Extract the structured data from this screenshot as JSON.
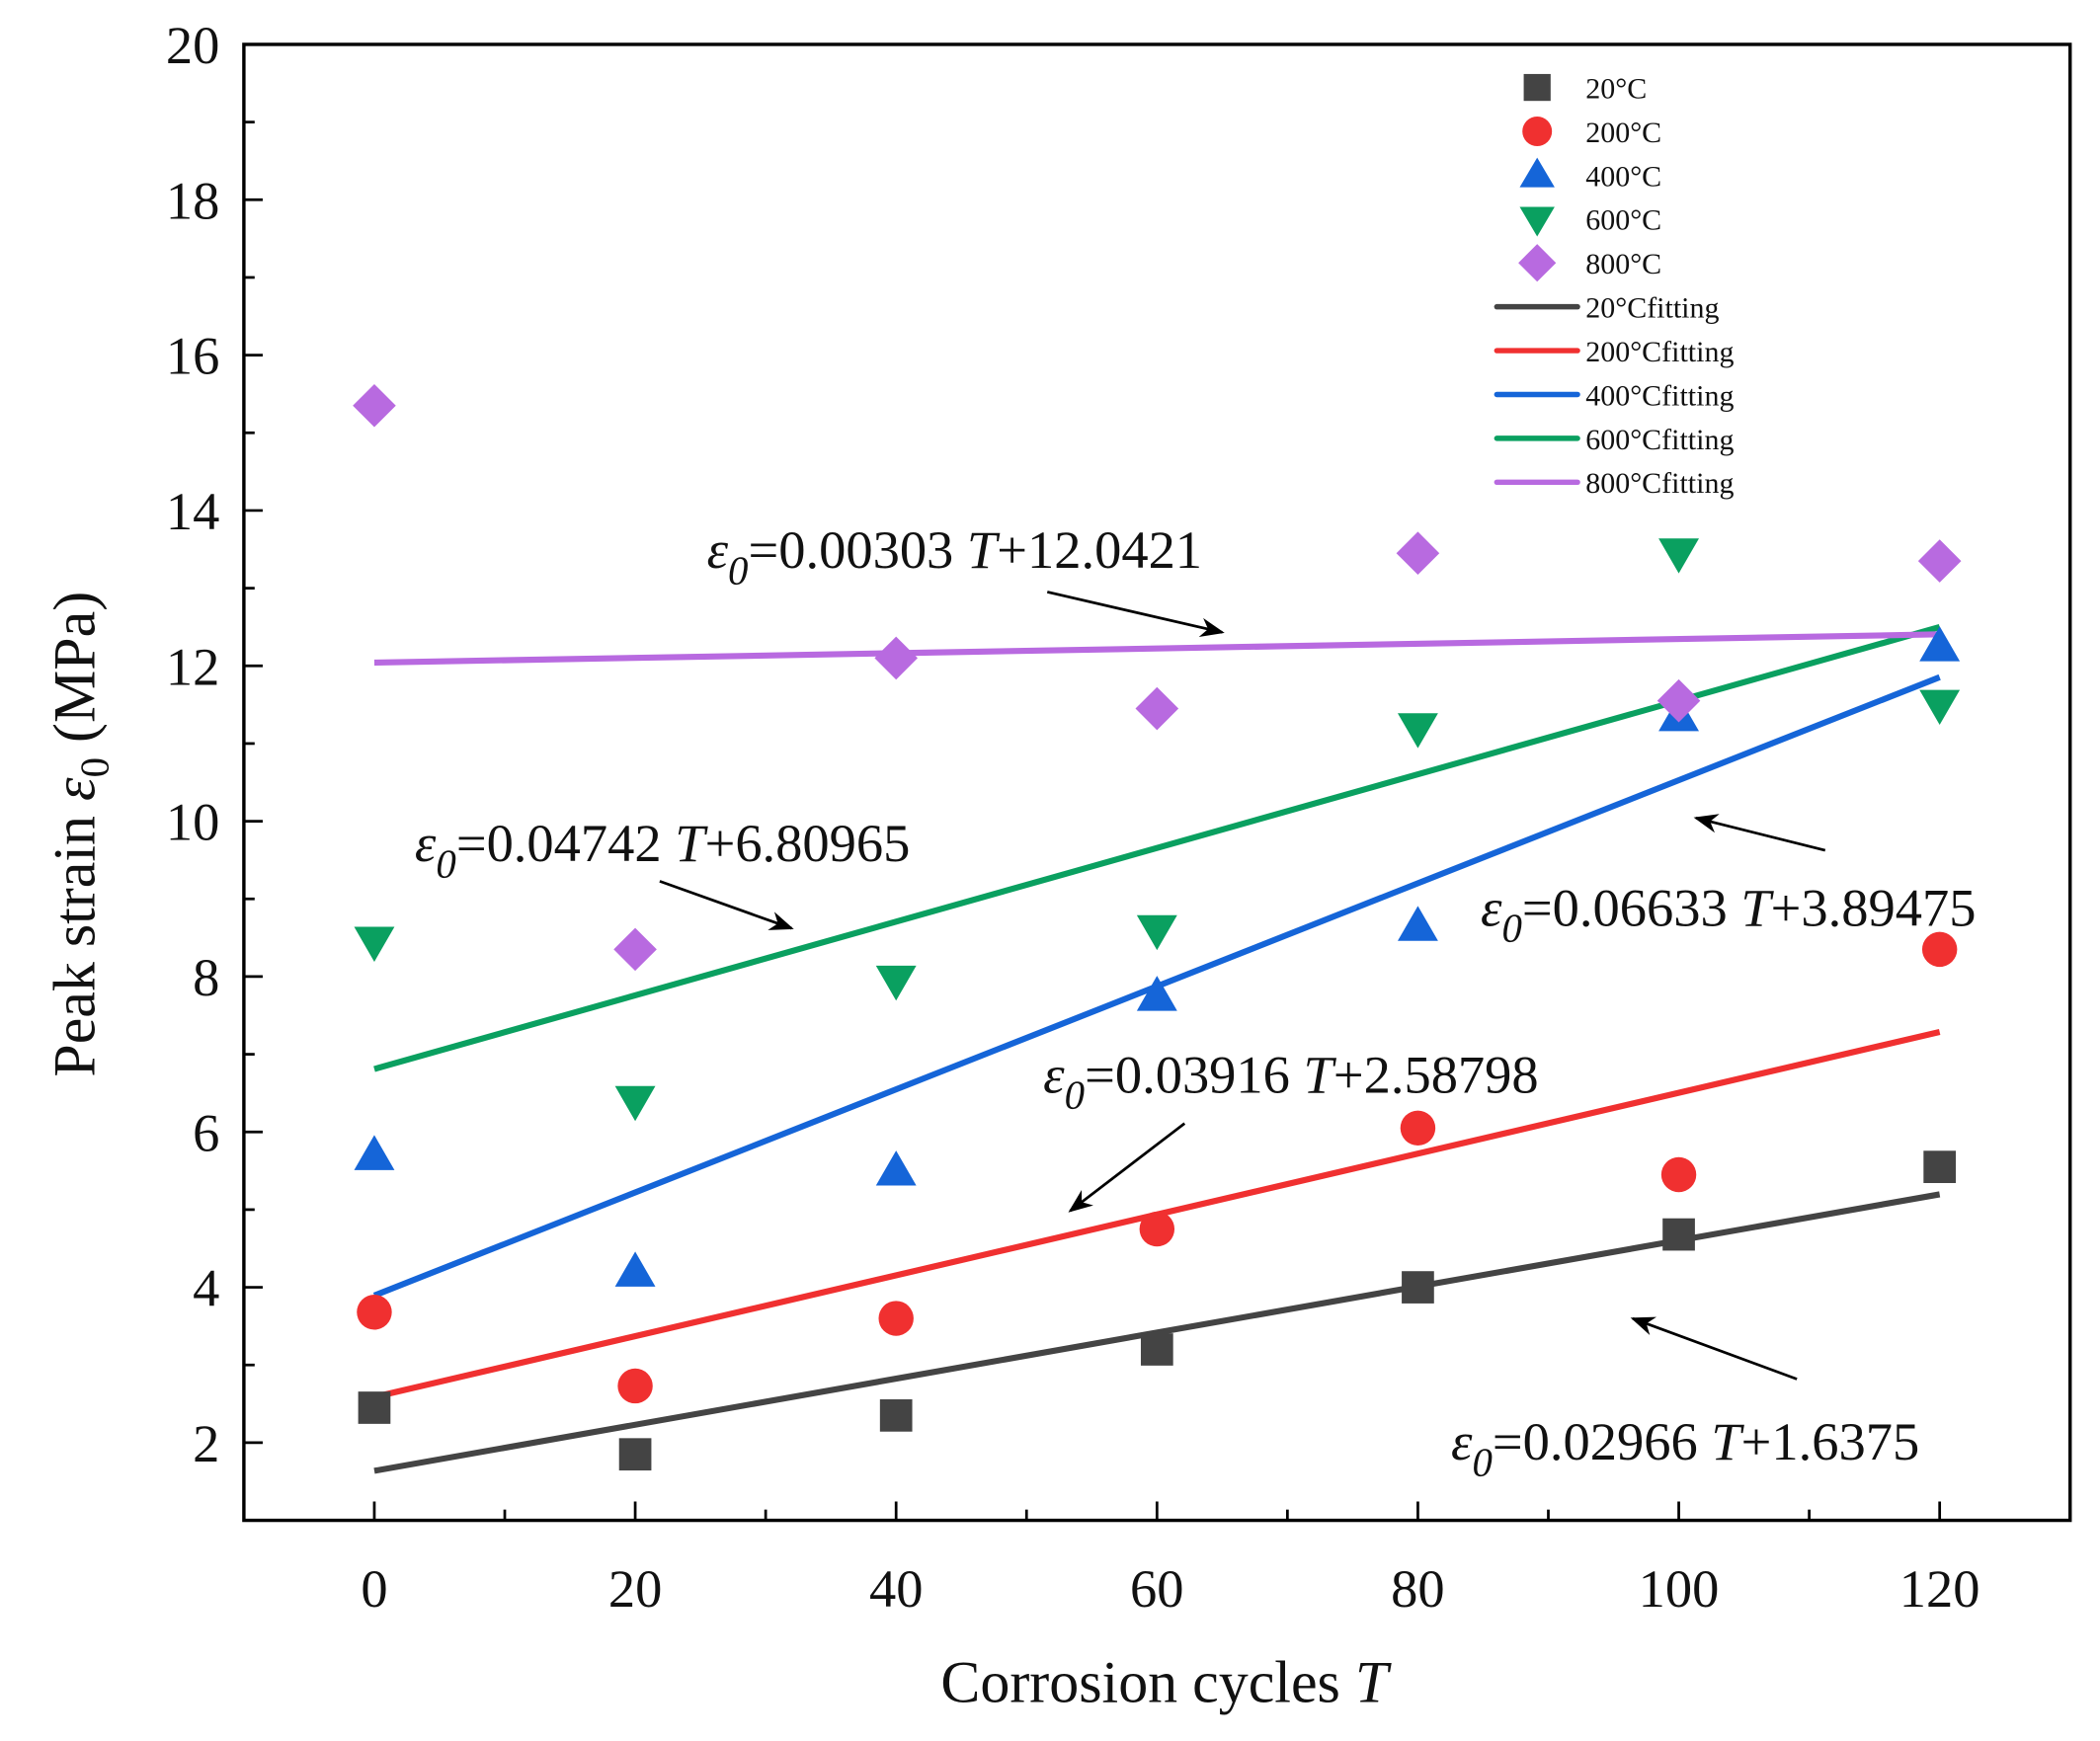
{
  "chart_data": {
    "type": "scatter",
    "title": "",
    "xlabel": "Corrosion cycles",
    "xlabel_var": "T",
    "ylabel": "Peak strain",
    "ylabel_var": "ε",
    "ylabel_sub": "0",
    "ylabel_unit": "(MPa)",
    "xlim": [
      -10,
      130
    ],
    "ylim": [
      1,
      20
    ],
    "xticks": [
      0,
      20,
      40,
      60,
      80,
      100,
      120
    ],
    "yticks": [
      2,
      4,
      6,
      8,
      10,
      12,
      14,
      16,
      18,
      20
    ],
    "grid": false,
    "legend_position": "top-right",
    "x": [
      0,
      20,
      40,
      60,
      80,
      100,
      120
    ],
    "series": [
      {
        "name": "20°C",
        "marker": "square",
        "color": "#444444",
        "values": [
          2.45,
          1.85,
          2.35,
          3.2,
          4.0,
          4.68,
          5.55
        ]
      },
      {
        "name": "200°C",
        "marker": "circle",
        "color": "#f03030",
        "values": [
          3.68,
          2.73,
          3.6,
          4.75,
          6.05,
          5.45,
          8.35
        ]
      },
      {
        "name": "400°C",
        "marker": "triangle-up",
        "color": "#1565d8",
        "values": [
          5.7,
          4.2,
          5.5,
          7.75,
          8.65,
          11.35,
          12.25
        ]
      },
      {
        "name": "600°C",
        "marker": "triangle-down",
        "color": "#0aa060",
        "values": [
          8.45,
          6.4,
          7.95,
          8.6,
          11.2,
          13.45,
          11.5
        ]
      },
      {
        "name": "800°C",
        "marker": "diamond",
        "color": "#b86ae0",
        "values": [
          15.35,
          8.35,
          12.1,
          11.45,
          13.45,
          11.55,
          13.35
        ]
      }
    ],
    "fits": [
      {
        "name": "20°Cfitting",
        "color": "#444444",
        "slope": 0.02966,
        "intercept": 1.6375,
        "range": [
          0,
          120
        ]
      },
      {
        "name": "200°Cfitting",
        "color": "#f03030",
        "slope": 0.03916,
        "intercept": 2.58798,
        "range": [
          0,
          120
        ]
      },
      {
        "name": "400°Cfitting",
        "color": "#1565d8",
        "slope": 0.06633,
        "intercept": 3.89475,
        "range": [
          0,
          120
        ]
      },
      {
        "name": "600°Cfitting",
        "color": "#0aa060",
        "slope": 0.04742,
        "intercept": 6.80965,
        "range": [
          0,
          120
        ]
      },
      {
        "name": "800°Cfitting",
        "color": "#b86ae0",
        "slope": 0.00303,
        "intercept": 12.0421,
        "range": [
          0,
          120
        ]
      }
    ],
    "annotations": [
      {
        "sym": "ε",
        "sub": "0",
        "a": "=0.00303 ",
        "var": "T",
        "b": "+12.0421"
      },
      {
        "sym": "ε",
        "sub": "0",
        "a": "=0.04742 ",
        "var": "T",
        "b": "+6.80965"
      },
      {
        "sym": "ε",
        "sub": "0",
        "a": "=0.06633 ",
        "var": "T",
        "b": "+3.89475"
      },
      {
        "sym": "ε",
        "sub": "0",
        "a": "=0.03916 ",
        "var": "T",
        "b": "+2.58798"
      },
      {
        "sym": "ε",
        "sub": "0",
        "a": "=0.02966 ",
        "var": "T",
        "b": "+1.6375"
      }
    ]
  }
}
